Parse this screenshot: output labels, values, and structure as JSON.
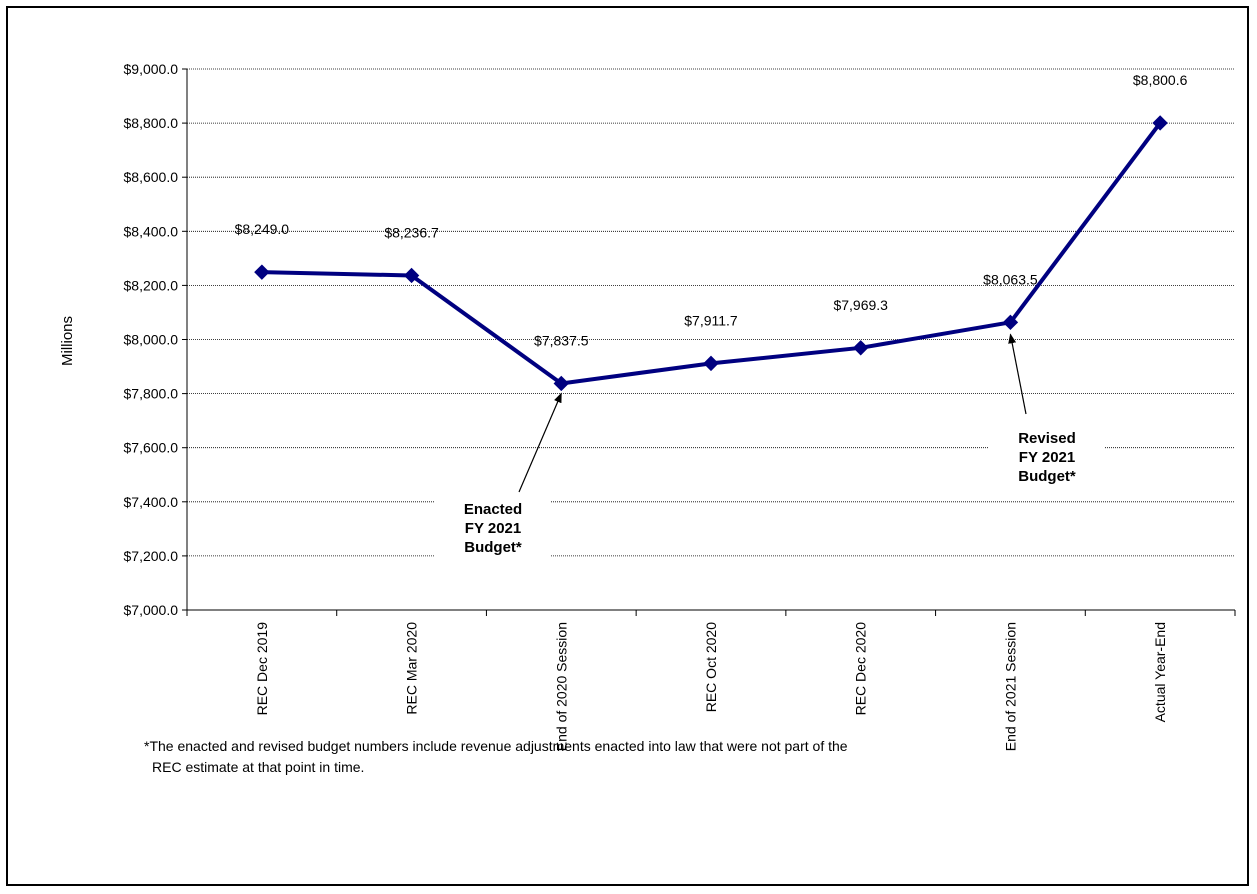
{
  "chart_data": {
    "type": "line",
    "categories": [
      "REC Dec 2019",
      "REC Mar 2020",
      "End of 2020 Session",
      "REC Oct 2020",
      "REC Dec 2020",
      "End of 2021 Session",
      "Actual Year-End"
    ],
    "series": [
      {
        "values": [
          8249.0,
          8236.7,
          7837.5,
          7911.7,
          7969.3,
          8063.5,
          8800.6
        ],
        "data_labels": [
          "$8,249.0",
          "$8,236.7",
          "$7,837.5",
          "$7,911.7",
          "$7,969.3",
          "$8,063.5",
          "$8,800.6"
        ],
        "color": "#000080",
        "marker": "diamond"
      }
    ],
    "ylim": [
      7000,
      9000
    ],
    "yticks": [
      7000,
      7200,
      7400,
      7600,
      7800,
      8000,
      8200,
      8400,
      8600,
      8800,
      9000
    ],
    "ytick_labels": [
      "$7,000.0",
      "$7,200.0",
      "$7,400.0",
      "$7,600.0",
      "$7,800.0",
      "$8,000.0",
      "$8,200.0",
      "$8,400.0",
      "$8,600.0",
      "$8,800.0",
      "$9,000.0"
    ],
    "xlabel": "",
    "ylabel": "Millions",
    "grid": true,
    "legend": "none",
    "annotations": [
      {
        "lines": [
          "Enacted",
          "FY 2021",
          "Budget*"
        ],
        "points_to": "End of 2020 Session"
      },
      {
        "lines": [
          "Revised",
          "FY 2021",
          "Budget*"
        ],
        "points_to": "End of 2021 Session"
      }
    ]
  },
  "footnote": {
    "line1": "*The enacted and revised budget numbers include revenue adjustments enacted into law that were not part of the",
    "line2": "REC estimate at that point in time."
  }
}
